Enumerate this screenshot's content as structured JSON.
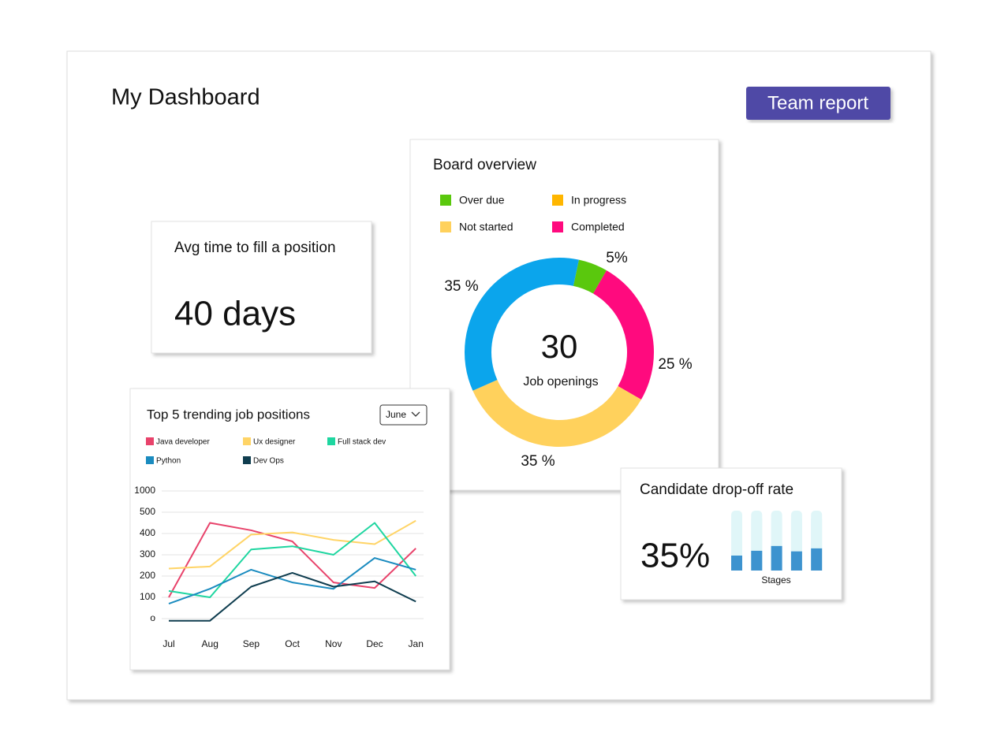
{
  "header": {
    "title": "My Dashboard",
    "button": "Team report"
  },
  "avg_time_card": {
    "title": "Avg time to fill a position",
    "value": "40 days"
  },
  "chart_data": [
    {
      "type": "donut",
      "title": "Board overview",
      "legend": [
        {
          "name": "Over due",
          "color": "#5ac80d"
        },
        {
          "name": "In progress",
          "color": "#ffb600"
        },
        {
          "name": "Not started",
          "color": "#ffd15c"
        },
        {
          "name": "Completed",
          "color": "#ff0a7e"
        }
      ],
      "values": [
        5,
        25,
        35,
        35
      ],
      "value_labels": [
        "5%",
        "25 %",
        "35 %",
        "35 %"
      ],
      "colors": [
        "#5ac80d",
        "#ff0a7e",
        "#ffd15c",
        "#0ba5ec"
      ],
      "center_value": 30,
      "center_label": "Job openings"
    },
    {
      "type": "line",
      "title": "Top 5 trending job positions",
      "filter": "June",
      "categories": [
        "Jul",
        "Aug",
        "Sep",
        "Oct",
        "Nov",
        "Dec",
        "Jan"
      ],
      "series": [
        {
          "name": "Java developer",
          "color": "#e8436b",
          "values": [
            100,
            450,
            415,
            363,
            170,
            144,
            330
          ]
        },
        {
          "name": "Ux designer",
          "color": "#ffd466",
          "values": [
            235,
            245,
            395,
            405,
            370,
            350,
            460
          ]
        },
        {
          "name": "Full stack dev",
          "color": "#1ed6a0",
          "values": [
            130,
            100,
            325,
            340,
            300,
            450,
            200
          ]
        },
        {
          "name": "Python",
          "color": "#1a8bbf",
          "values": [
            70,
            140,
            230,
            170,
            140,
            285,
            230
          ]
        },
        {
          "name": "Dev Ops",
          "color": "#0f3d4f",
          "values": [
            -10,
            -10,
            150,
            215,
            150,
            175,
            80
          ]
        }
      ],
      "ylim": [
        0,
        1000
      ],
      "yticks": [
        {
          "value": 0,
          "label": "o"
        },
        100,
        200,
        300,
        400,
        500,
        1000
      ],
      "grid": true
    },
    {
      "type": "bar",
      "title": "Candidate drop-off rate",
      "headline": "35%",
      "xlabel": "Stages",
      "values": [
        25,
        33,
        41,
        32,
        37
      ],
      "color": "#3d93cf",
      "track_color": "#e0f6f8",
      "ylim": [
        0,
        100
      ]
    }
  ]
}
